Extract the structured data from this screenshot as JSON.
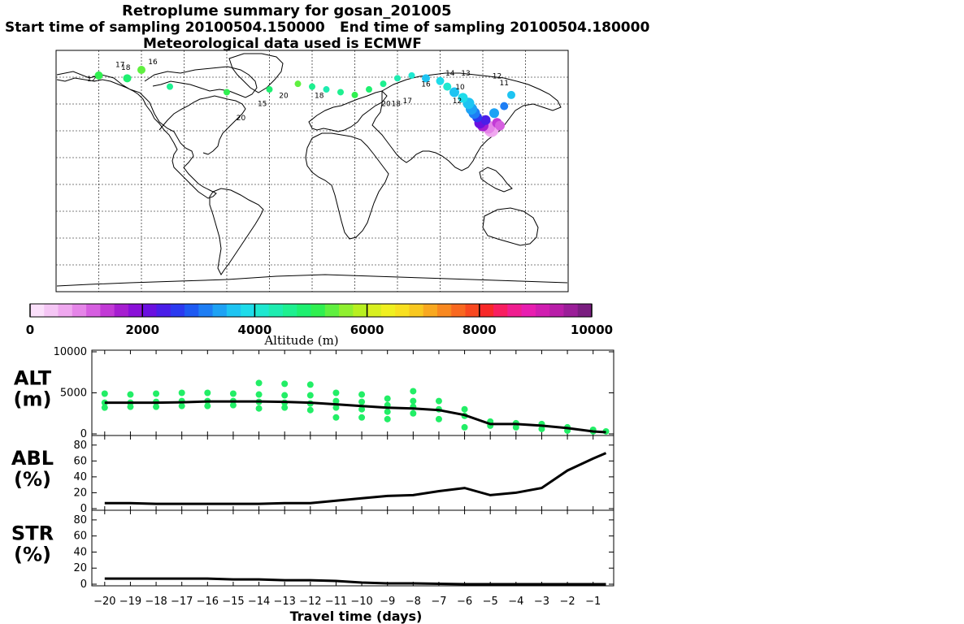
{
  "header": {
    "title": "Retroplume summary for gosan_201005",
    "start_sampling": "Start time of sampling 20100504.150000",
    "end_sampling": "End time of sampling 20100504.180000",
    "met_data": "Meteorological data used is ECMWF"
  },
  "colorbar": {
    "title": "Altitude (m)",
    "ticks": [
      "0",
      "2000",
      "4000",
      "6000",
      "8000",
      "10000"
    ],
    "colors": [
      "#fbe0fb",
      "#f5c6f5",
      "#efa8ef",
      "#e585e8",
      "#d65fe0",
      "#c23ad6",
      "#a61ed0",
      "#8a10d8",
      "#6a10e0",
      "#4a1ee8",
      "#2b3af0",
      "#1e5af2",
      "#1e7ef4",
      "#1ea2f4",
      "#1ec4f2",
      "#1edcea",
      "#1ee8d0",
      "#1eecb0",
      "#1ef090",
      "#1ef070",
      "#30f050",
      "#60f040",
      "#90f030",
      "#b8f020",
      "#d8f020",
      "#f0f020",
      "#f8e020",
      "#f8c820",
      "#f8a820",
      "#f88820",
      "#f86820",
      "#f84820",
      "#f82828",
      "#f81e60",
      "#f01e90",
      "#e81eb0",
      "#d01eb0",
      "#b81ea8",
      "#9a1e98",
      "#7a1e80"
    ]
  },
  "chart_data": [
    {
      "type": "scatter",
      "name": "ALT",
      "ylabel_line1": "ALT",
      "ylabel_line2": "(m)",
      "ylim": [
        0,
        10000
      ],
      "yticks": [
        "0",
        "5000",
        "10000"
      ],
      "x": [
        -20,
        -19,
        -18,
        -17,
        -16,
        -15,
        -14,
        -13,
        -12,
        -11,
        -10,
        -9,
        -8,
        -7,
        -6,
        -5,
        -4,
        -3,
        -2,
        -1,
        -0.5
      ],
      "mean_line": [
        3800,
        3800,
        3800,
        3850,
        3950,
        3950,
        3950,
        3900,
        3800,
        3600,
        3400,
        3200,
        3100,
        2900,
        2300,
        1200,
        1200,
        1000,
        700,
        300,
        200
      ],
      "points": [
        [
          -20,
          4900
        ],
        [
          -20,
          3800
        ],
        [
          -20,
          3200
        ],
        [
          -19,
          4800
        ],
        [
          -19,
          3800
        ],
        [
          -19,
          3300
        ],
        [
          -18,
          4900
        ],
        [
          -18,
          3900
        ],
        [
          -18,
          3300
        ],
        [
          -17,
          5000
        ],
        [
          -17,
          4000
        ],
        [
          -17,
          3400
        ],
        [
          -16,
          5000
        ],
        [
          -16,
          4000
        ],
        [
          -16,
          3400
        ],
        [
          -15,
          4900
        ],
        [
          -15,
          4000
        ],
        [
          -15,
          3500
        ],
        [
          -14,
          6200
        ],
        [
          -14,
          4800
        ],
        [
          -14,
          3900
        ],
        [
          -14,
          3100
        ],
        [
          -13,
          6100
        ],
        [
          -13,
          4700
        ],
        [
          -13,
          3800
        ],
        [
          -13,
          3200
        ],
        [
          -12,
          6000
        ],
        [
          -12,
          4700
        ],
        [
          -12,
          3700
        ],
        [
          -12,
          2900
        ],
        [
          -11,
          5000
        ],
        [
          -11,
          4000
        ],
        [
          -11,
          3200
        ],
        [
          -11,
          2000
        ],
        [
          -10,
          4800
        ],
        [
          -10,
          3900
        ],
        [
          -10,
          3000
        ],
        [
          -10,
          2000
        ],
        [
          -9,
          4300
        ],
        [
          -9,
          3500
        ],
        [
          -9,
          2700
        ],
        [
          -9,
          1800
        ],
        [
          -8,
          5200
        ],
        [
          -8,
          4000
        ],
        [
          -8,
          3300
        ],
        [
          -8,
          2500
        ],
        [
          -7,
          4000
        ],
        [
          -7,
          3000
        ],
        [
          -7,
          1800
        ],
        [
          -6,
          3000
        ],
        [
          -6,
          2200
        ],
        [
          -6,
          800
        ],
        [
          -5,
          1500
        ],
        [
          -5,
          1000
        ],
        [
          -4,
          1300
        ],
        [
          -4,
          800
        ],
        [
          -3,
          1200
        ],
        [
          -3,
          600
        ],
        [
          -2,
          800
        ],
        [
          -2,
          400
        ],
        [
          -1,
          500
        ],
        [
          -1,
          300
        ],
        [
          -0.5,
          300
        ]
      ]
    },
    {
      "type": "line",
      "name": "ABL",
      "ylabel_line1": "ABL",
      "ylabel_line2": "(%)",
      "ylim": [
        0,
        90
      ],
      "yticks": [
        "0",
        "20",
        "40",
        "60",
        "80"
      ],
      "x": [
        -20,
        -19,
        -18,
        -17,
        -16,
        -15,
        -14,
        -13,
        -12,
        -11,
        -10,
        -9,
        -8,
        -7,
        -6,
        -5,
        -4,
        -3,
        -2,
        -1,
        -0.5
      ],
      "values": [
        7,
        7,
        6,
        6,
        6,
        6,
        6,
        7,
        7,
        10,
        13,
        16,
        17,
        22,
        26,
        17,
        20,
        26,
        48,
        63,
        70
      ]
    },
    {
      "type": "line",
      "name": "STR",
      "ylabel_line1": "STR",
      "ylabel_line2": "(%)",
      "ylim": [
        0,
        90
      ],
      "yticks": [
        "0",
        "20",
        "40",
        "60",
        "80"
      ],
      "x": [
        -20,
        -19,
        -18,
        -17,
        -16,
        -15,
        -14,
        -13,
        -12,
        -11,
        -10,
        -9,
        -8,
        -7,
        -6,
        -5,
        -4,
        -3,
        -2,
        -1,
        -0.5
      ],
      "values": [
        7,
        7,
        7,
        7,
        7,
        6,
        6,
        5,
        5,
        4,
        2,
        1,
        1,
        0.5,
        0,
        0,
        0,
        0,
        0,
        0,
        0
      ]
    }
  ],
  "xaxis": {
    "title": "Travel time (days)",
    "ticks": [
      "−20",
      "−19",
      "−18",
      "−17",
      "−16",
      "−15",
      "−14",
      "−13",
      "−12",
      "−11",
      "−10",
      "−9",
      "−8",
      "−7",
      "−6",
      "−5",
      "−4",
      "−3",
      "−2",
      "−1"
    ]
  },
  "map_labels": [
    {
      "text": "17",
      "lon": -135,
      "lat": 78
    },
    {
      "text": "18",
      "lon": -131,
      "lat": 76
    },
    {
      "text": "16",
      "lon": -112,
      "lat": 80
    },
    {
      "text": "12",
      "lon": -155,
      "lat": 68
    },
    {
      "text": "20",
      "lon": -20,
      "lat": 56
    },
    {
      "text": "15",
      "lon": -35,
      "lat": 50
    },
    {
      "text": "18",
      "lon": 5,
      "lat": 56
    },
    {
      "text": "20",
      "lon": 52,
      "lat": 50
    },
    {
      "text": "18",
      "lon": 59,
      "lat": 50
    },
    {
      "text": "17",
      "lon": 67,
      "lat": 52
    },
    {
      "text": "16",
      "lon": 80,
      "lat": 64
    },
    {
      "text": "14",
      "lon": 97,
      "lat": 72
    },
    {
      "text": "13",
      "lon": 108,
      "lat": 72
    },
    {
      "text": "12",
      "lon": 130,
      "lat": 70
    },
    {
      "text": "11",
      "lon": 135,
      "lat": 65
    },
    {
      "text": "12",
      "lon": 102,
      "lat": 52
    },
    {
      "text": "20",
      "lon": -50,
      "lat": 40
    },
    {
      "text": "10",
      "lon": 104,
      "lat": 62
    }
  ]
}
